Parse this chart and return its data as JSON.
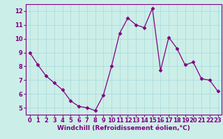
{
  "x": [
    0,
    1,
    2,
    3,
    4,
    5,
    6,
    7,
    8,
    9,
    10,
    11,
    12,
    13,
    14,
    15,
    16,
    17,
    18,
    19,
    20,
    21,
    22,
    23
  ],
  "y": [
    9.0,
    8.1,
    7.3,
    6.8,
    6.3,
    5.5,
    5.1,
    5.0,
    4.8,
    5.9,
    8.0,
    10.4,
    11.5,
    11.0,
    10.8,
    12.2,
    7.7,
    10.1,
    9.3,
    8.1,
    8.3,
    7.1,
    7.0,
    6.2
  ],
  "line_color": "#800080",
  "marker": "D",
  "marker_size": 2.5,
  "bg_color": "#cceee8",
  "grid_color": "#aadddd",
  "xlabel": "Windchill (Refroidissement éolien,°C)",
  "xlabel_fontsize": 6.5,
  "tick_fontsize": 6.0,
  "ylim": [
    4.5,
    12.5
  ],
  "yticks": [
    5,
    6,
    7,
    8,
    9,
    10,
    11,
    12
  ],
  "xlim": [
    -0.5,
    23.5
  ],
  "xticks": [
    0,
    1,
    2,
    3,
    4,
    5,
    6,
    7,
    8,
    9,
    10,
    11,
    12,
    13,
    14,
    15,
    16,
    17,
    18,
    19,
    20,
    21,
    22,
    23
  ]
}
